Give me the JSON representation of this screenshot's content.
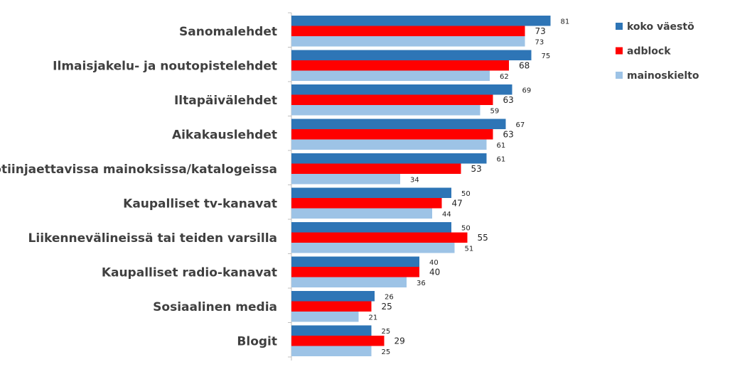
{
  "chart_data": {
    "type": "bar",
    "orientation": "horizontal",
    "categories": [
      "Sanomalehdet",
      "Ilmaisjakelu- ja noutopistelehdet",
      "Iltapäivälehdet",
      "Aikakauslehdet",
      "Kotiinjaettavissa mainoksissa/katalogeissa",
      "Kaupalliset tv-kanavat",
      "Liikennevälineissä tai teiden varsilla",
      "Kaupalliset radio-kanavat",
      "Sosiaalinen media",
      "Blogit"
    ],
    "series": [
      {
        "name": "koko väestö",
        "color": "#2E75B6",
        "values": [
          81,
          75,
          69,
          67,
          61,
          50,
          50,
          40,
          26,
          25
        ]
      },
      {
        "name": "adblock",
        "color": "#FF0000",
        "values": [
          73,
          68,
          63,
          63,
          53,
          47,
          55,
          40,
          25,
          29
        ]
      },
      {
        "name": "mainoskielto",
        "color": "#9DC3E6",
        "values": [
          73,
          62,
          59,
          61,
          34,
          44,
          51,
          36,
          21,
          25
        ]
      }
    ],
    "xlim": [
      0,
      100
    ],
    "grid": false,
    "legend_position": "top-right",
    "data_labels": true
  }
}
